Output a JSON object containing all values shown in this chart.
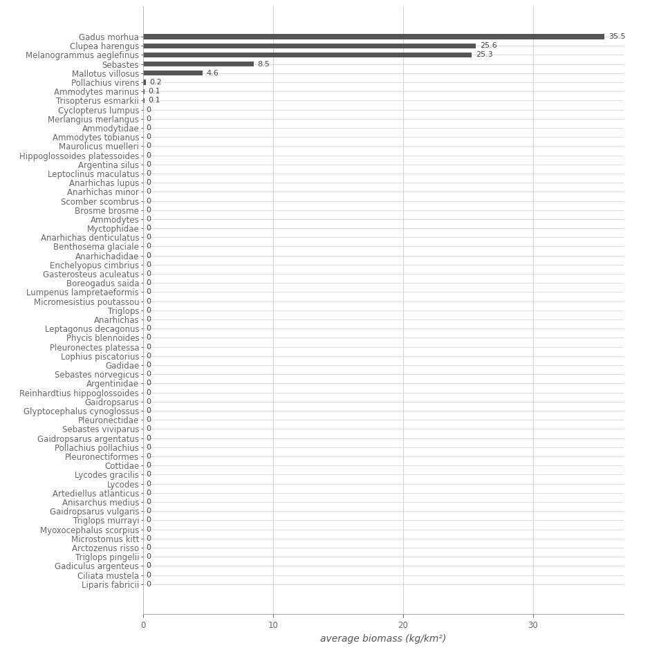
{
  "species": [
    "Gadus morhua",
    "Clupea harengus",
    "Melanogrammus aeglefinus",
    "Sebastes",
    "Mallotus villosus",
    "Pollachius virens",
    "Ammodytes marinus",
    "Trisopterus esmarkii",
    "Cyclopterus lumpus",
    "Merlangius merlangus",
    "Ammodytidae",
    "Ammodytes tobianus",
    "Maurolicus muelleri",
    "Hippoglossoides platessoides",
    "Argentina silus",
    "Leptoclinus maculatus",
    "Anarhichas lupus",
    "Anarhichas minor",
    "Scomber scombrus",
    "Brosme brosme",
    "Ammodytes",
    "Myctophidae",
    "Anarhichas denticulatus",
    "Benthosema glaciale",
    "Anarhichadidae",
    "Enchelyopus cimbrius",
    "Gasterosteus aculeatus",
    "Boreogadus saida",
    "Lumpenus lampretaeformis",
    "Micromesistius poutassou",
    "Triglops",
    "Anarhichas",
    "Leptagonus decagonus",
    "Phycis blennoides",
    "Pleuronectes platessa",
    "Lophius piscatorius",
    "Gadidae",
    "Sebastes norvegicus",
    "Argentinidae",
    "Reinhardtius hippoglossoides",
    "Gaidropsarus",
    "Glyptocephalus cynoglossus",
    "Pleuronectidae",
    "Sebastes viviparus",
    "Gaidropsarus argentatus",
    "Pollachius pollachius",
    "Pleuronectiformes",
    "Cottidae",
    "Lycodes gracilis",
    "Lycodes",
    "Artediellus atlanticus",
    "Anisarchus medius",
    "Gaidropsarus vulgaris",
    "Triglops murrayi",
    "Myoxocephalus scorpius",
    "Microstomus kitt",
    "Arctozenus risso",
    "Triglops pingelii",
    "Gadiculus argenteus",
    "Ciliata mustela",
    "Liparis fabricii"
  ],
  "values": [
    35.5,
    25.6,
    25.3,
    8.5,
    4.6,
    0.2,
    0.1,
    0.1,
    0,
    0,
    0,
    0,
    0,
    0,
    0,
    0,
    0,
    0,
    0,
    0,
    0,
    0,
    0,
    0,
    0,
    0,
    0,
    0,
    0,
    0,
    0,
    0,
    0,
    0,
    0,
    0,
    0,
    0,
    0,
    0,
    0,
    0,
    0,
    0,
    0,
    0,
    0,
    0,
    0,
    0,
    0,
    0,
    0,
    0,
    0,
    0,
    0,
    0,
    0,
    0,
    0
  ],
  "labels": [
    "35.5",
    "25.6",
    "25.3",
    "8.5",
    "4.6",
    "0.2",
    "0.1",
    "0.1",
    "0",
    "0",
    "0",
    "0",
    "0",
    "0",
    "0",
    "0",
    "0",
    "0",
    "0",
    "0",
    "0",
    "0",
    "0",
    "0",
    "0",
    "0",
    "0",
    "0",
    "0",
    "0",
    "0",
    "0",
    "0",
    "0",
    "0",
    "0",
    "0",
    "0",
    "0",
    "0",
    "0",
    "0",
    "0",
    "0",
    "0",
    "0",
    "0",
    "0",
    "0",
    "0",
    "0",
    "0",
    "0",
    "0",
    "0",
    "0",
    "0",
    "0",
    "0",
    "0",
    "0"
  ],
  "bar_color": "#555555",
  "background_color": "#ffffff",
  "grid_color": "#d0d0d0",
  "xlabel": "average biomass (kg/km²)",
  "xlim": [
    0,
    37
  ],
  "xlabel_fontsize": 10,
  "tick_fontsize": 8.5,
  "label_fontsize": 8,
  "fig_width": 9.4,
  "fig_height": 9.4
}
